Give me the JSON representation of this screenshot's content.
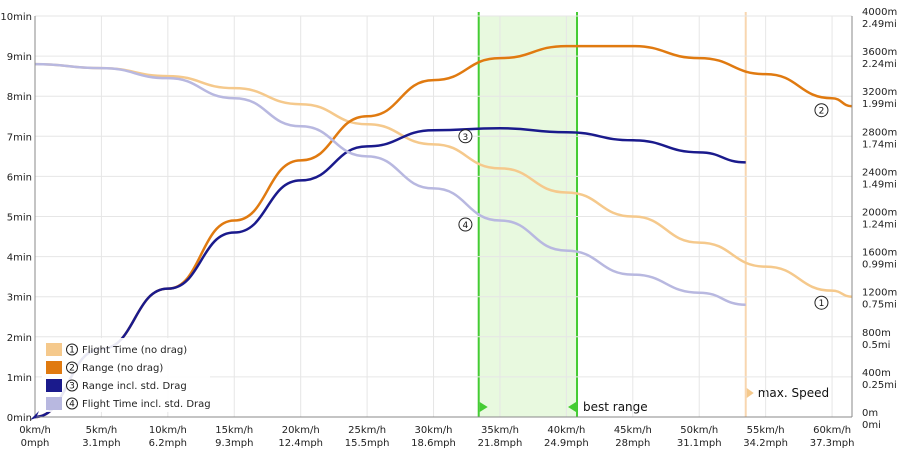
{
  "chart_data": {
    "type": "line",
    "x_unit_labels": {
      "kmh": [
        "0km/h",
        "5km/h",
        "10km/h",
        "15km/h",
        "20km/h",
        "25km/h",
        "30km/h",
        "35km/h",
        "40km/h",
        "45km/h",
        "50km/h",
        "55km/h",
        "60km/h"
      ],
      "mph": [
        "0mph",
        "3.1mph",
        "6.2mph",
        "9.3mph",
        "12.4mph",
        "15.5mph",
        "18.6mph",
        "21.8mph",
        "24.9mph",
        "28mph",
        "31.1mph",
        "34.2mph",
        "37.3mph"
      ]
    },
    "xlim": [
      0,
      61.5
    ],
    "left_axis": {
      "unit": "min",
      "ylim": [
        0,
        10
      ],
      "ticks": [
        "0min",
        "1min",
        "2min",
        "3min",
        "4min",
        "5min",
        "6min",
        "7min",
        "8min",
        "9min",
        "10min"
      ]
    },
    "right_axis": {
      "ylim": [
        0,
        4000
      ],
      "ticks_m": [
        "0m",
        "400m",
        "800m",
        "1200m",
        "1600m",
        "2000m",
        "2400m",
        "2800m",
        "3200m",
        "3600m",
        "4000m"
      ],
      "ticks_mi": [
        "0mi",
        "0.25mi",
        "0.5mi",
        "0.75mi",
        "0.99mi",
        "1.24mi",
        "1.49mi",
        "1.74mi",
        "1.99mi",
        "2.24mi",
        "2.49mi"
      ]
    },
    "series": [
      {
        "id": "1",
        "name": "Flight Time (no drag)",
        "axis": "left",
        "color": "#f5c98c",
        "x": [
          0,
          5,
          10,
          15,
          20,
          25,
          30,
          35,
          40,
          45,
          50,
          55,
          60,
          61.5
        ],
        "y": [
          8.8,
          8.7,
          8.5,
          8.2,
          7.8,
          7.3,
          6.8,
          6.2,
          5.6,
          5.0,
          4.35,
          3.75,
          3.15,
          3.0
        ]
      },
      {
        "id": "2",
        "name": "Range (no drag)",
        "axis": "right",
        "color": "#e07a10",
        "x": [
          0,
          5,
          10,
          15,
          20,
          25,
          30,
          35,
          40,
          45,
          50,
          55,
          60,
          61.5
        ],
        "y": [
          0,
          680,
          1280,
          1960,
          2560,
          3000,
          3360,
          3580,
          3700,
          3700,
          3580,
          3420,
          3180,
          3100
        ]
      },
      {
        "id": "3",
        "name": "Range incl. std. Drag",
        "axis": "right",
        "color": "#1a1a8c",
        "x": [
          0,
          5,
          10,
          15,
          20,
          25,
          30,
          35,
          40,
          45,
          50,
          53.5
        ],
        "y": [
          0,
          680,
          1280,
          1840,
          2360,
          2700,
          2860,
          2880,
          2840,
          2760,
          2640,
          2540
        ]
      },
      {
        "id": "4",
        "name": "Flight Time incl. std. Drag",
        "axis": "left",
        "color": "#b8b8e0",
        "x": [
          0,
          5,
          10,
          15,
          20,
          25,
          30,
          35,
          40,
          45,
          50,
          53.5
        ],
        "y": [
          8.8,
          8.7,
          8.45,
          7.95,
          7.25,
          6.5,
          5.7,
          4.9,
          4.15,
          3.55,
          3.1,
          2.8
        ]
      }
    ],
    "series_labels": {
      "1": "①",
      "2": "②",
      "3": "③",
      "4": "④"
    },
    "label_positions": [
      {
        "id": "1",
        "x": 59.2,
        "y": 2.85,
        "axis": "left"
      },
      {
        "id": "2",
        "x": 59.2,
        "y": 3060,
        "axis": "right"
      },
      {
        "id": "3",
        "x": 32.4,
        "y": 2800,
        "axis": "right"
      },
      {
        "id": "4",
        "x": 32.4,
        "y": 4.8,
        "axis": "left"
      }
    ],
    "best_range": {
      "label": "best range",
      "x_start": 33.4,
      "x_end": 40.8,
      "fill": "#e8f9df",
      "line": "#44cc33"
    },
    "max_speed": {
      "label": "max. Speed",
      "x": 53.5,
      "color": "#f8d6b0"
    },
    "grid": true,
    "legend": {
      "placement": "bottom-left",
      "entries": [
        {
          "marker": "①",
          "text": "Flight Time (no drag)"
        },
        {
          "marker": "②",
          "text": "Range (no drag)"
        },
        {
          "marker": "③",
          "text": "Range incl. std. Drag"
        },
        {
          "marker": "④",
          "text": "Flight Time incl. std. Drag"
        }
      ]
    }
  }
}
